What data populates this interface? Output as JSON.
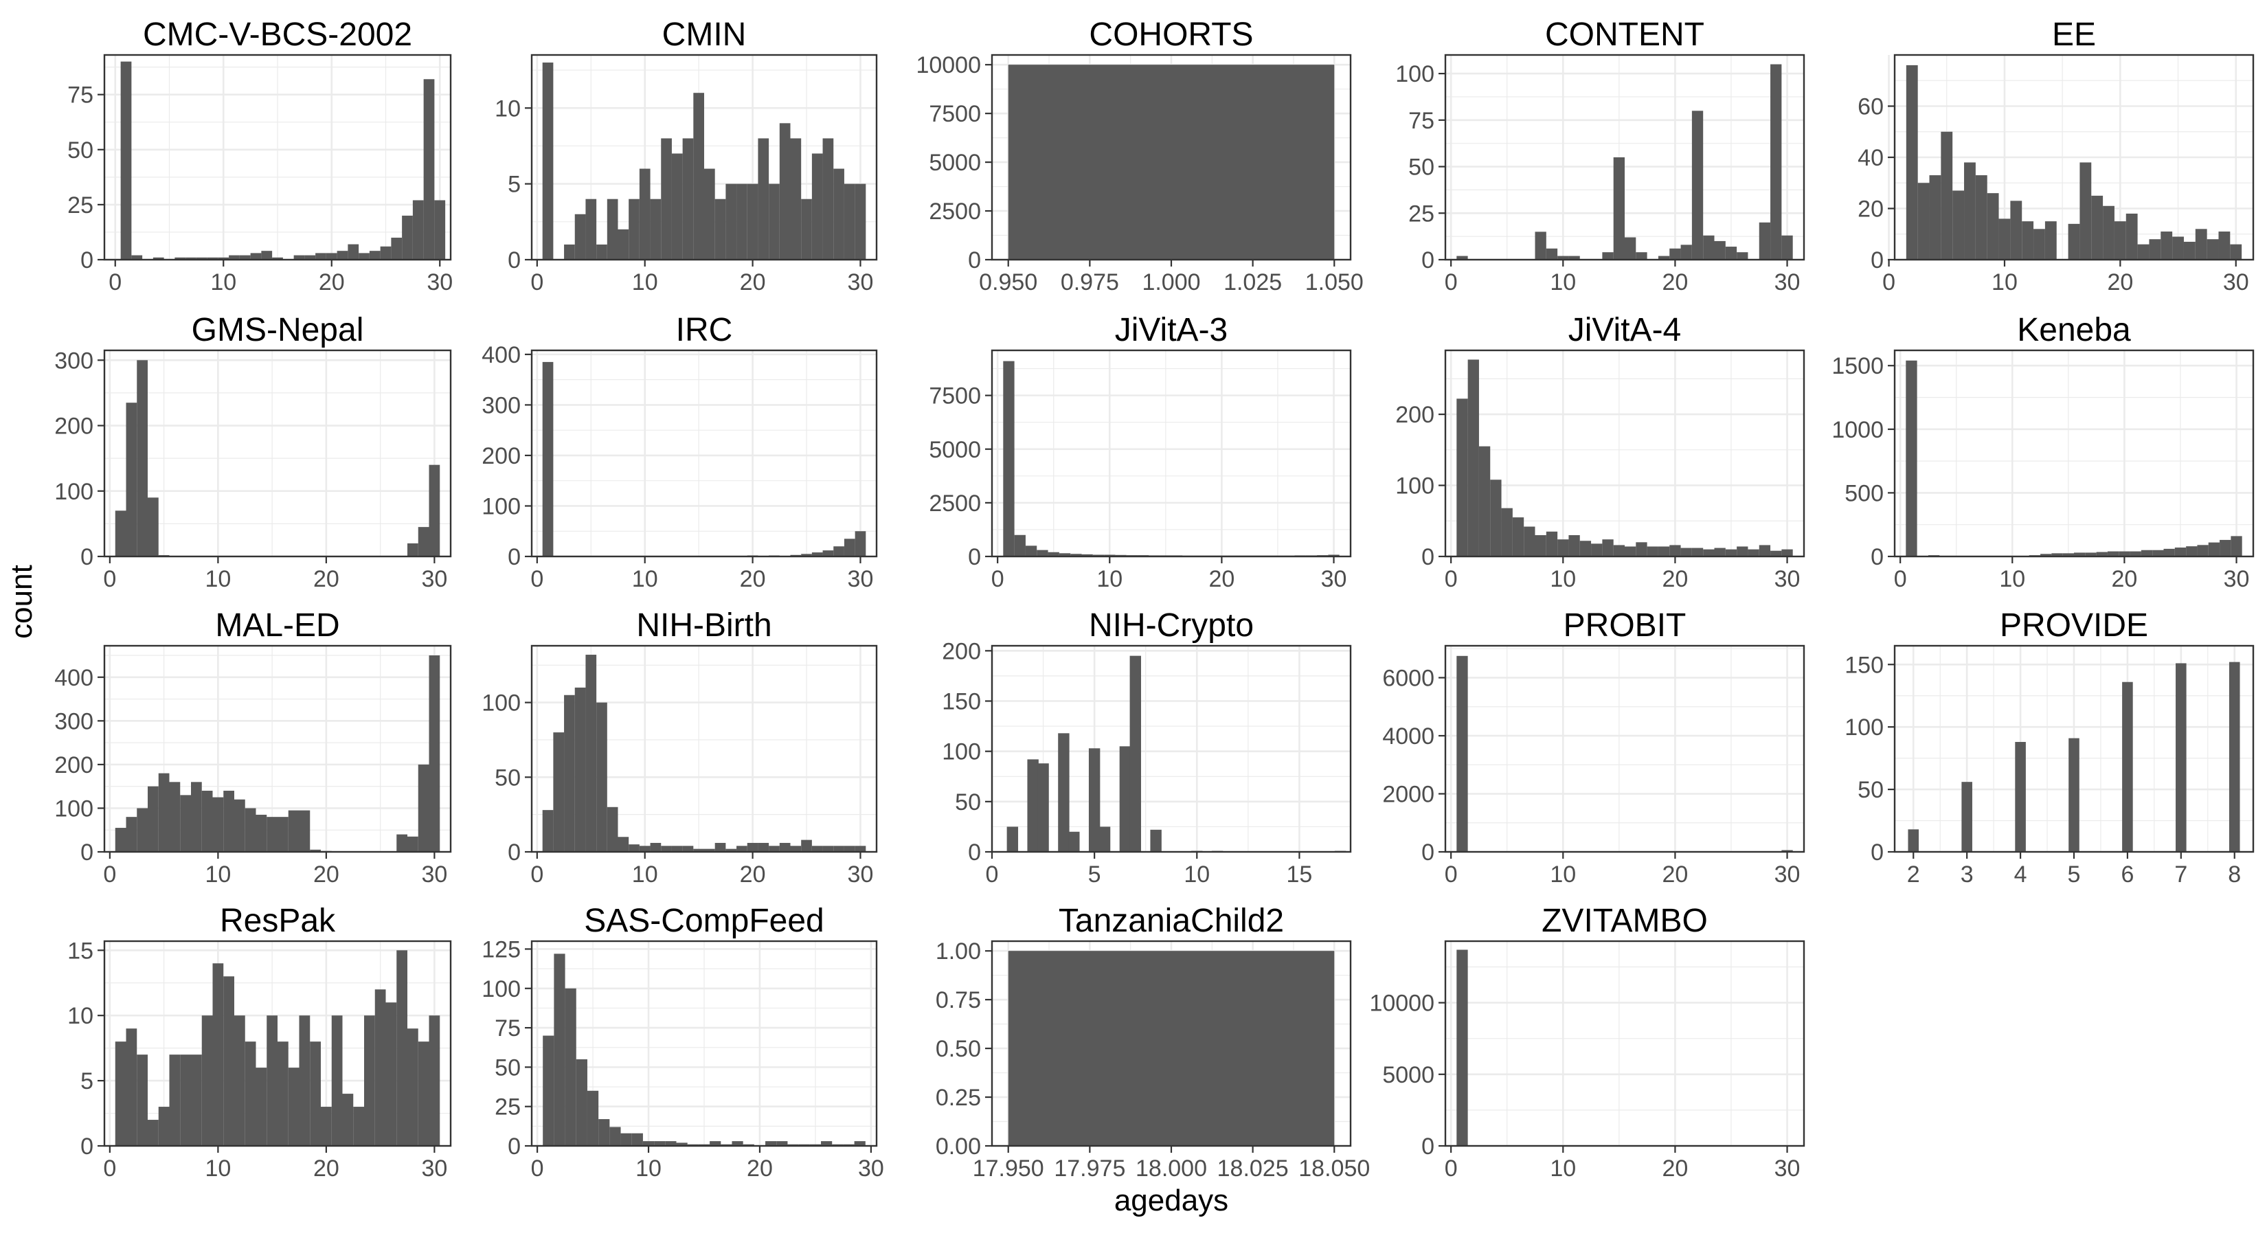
{
  "figure": {
    "ylabel": "count",
    "xlabel": "agedays",
    "colors": {
      "bar": "#595959",
      "grid": "#ebebeb",
      "frame": "#333333",
      "tick_text": "#4d4d4d",
      "title_text": "#000000"
    }
  },
  "chart_data": [
    {
      "type": "bar",
      "title": "CMC-V-BCS-2002",
      "xlim": [
        -1,
        31
      ],
      "xticks": [
        0,
        10,
        20,
        30
      ],
      "ylim": [
        0,
        93
      ],
      "yticks": [
        0,
        25,
        50,
        75
      ],
      "x": [
        1,
        2,
        3,
        4,
        5,
        6,
        7,
        8,
        9,
        10,
        11,
        12,
        13,
        14,
        15,
        16,
        17,
        18,
        19,
        20,
        21,
        22,
        23,
        24,
        25,
        26,
        27,
        28,
        29,
        30
      ],
      "values": [
        90,
        2,
        0,
        1,
        0,
        1,
        1,
        1,
        1,
        1,
        2,
        2,
        3,
        4,
        1,
        0,
        2,
        2,
        3,
        3,
        4,
        7,
        3,
        4,
        6,
        10,
        20,
        27,
        82,
        27
      ],
      "bar_width": 1.0
    },
    {
      "type": "bar",
      "title": "CMIN",
      "xlim": [
        -0.5,
        31.5
      ],
      "xticks": [
        0,
        10,
        20,
        30
      ],
      "ylim": [
        0,
        13.5
      ],
      "yticks": [
        0,
        5,
        10
      ],
      "x": [
        1,
        3,
        4,
        5,
        6,
        7,
        8,
        9,
        10,
        11,
        12,
        13,
        14,
        15,
        16,
        17,
        18,
        19,
        20,
        21,
        22,
        23,
        24,
        25,
        26,
        27,
        28,
        29,
        30
      ],
      "values": [
        13,
        1,
        3,
        4,
        1,
        4,
        2,
        4,
        6,
        4,
        8,
        7,
        8,
        11,
        6,
        4,
        5,
        5,
        5,
        8,
        5,
        9,
        8,
        4,
        7,
        8,
        6,
        5,
        5
      ],
      "bar_width": 1.0
    },
    {
      "type": "bar",
      "title": "COHORTS",
      "xlim": [
        0.945,
        1.055
      ],
      "xticks": [
        0.95,
        0.975,
        1.0,
        1.025,
        1.05
      ],
      "xtick_labels": [
        "0.950",
        "0.975",
        "1.000",
        "1.025",
        "1.050"
      ],
      "ylim": [
        0,
        10500
      ],
      "yticks": [
        0,
        2500,
        5000,
        7500,
        10000
      ],
      "x": [
        1.0
      ],
      "values": [
        10000
      ],
      "bar_width": 0.1
    },
    {
      "type": "bar",
      "title": "CONTENT",
      "xlim": [
        -0.5,
        31.5
      ],
      "xticks": [
        0,
        10,
        20,
        30
      ],
      "ylim": [
        0,
        110
      ],
      "yticks": [
        0,
        25,
        50,
        75,
        100
      ],
      "x": [
        1,
        8,
        9,
        10,
        11,
        14,
        15,
        16,
        17,
        19,
        20,
        21,
        22,
        23,
        24,
        25,
        26,
        28,
        29,
        30
      ],
      "values": [
        2,
        15,
        6,
        2,
        2,
        4,
        55,
        12,
        4,
        2,
        6,
        8,
        80,
        13,
        10,
        7,
        4,
        20,
        105,
        13
      ],
      "bar_width": 1.0
    },
    {
      "type": "bar",
      "title": "EE",
      "xlim": [
        0.5,
        31.5
      ],
      "xticks": [
        0,
        10,
        20,
        30
      ],
      "ylim": [
        0,
        80
      ],
      "yticks": [
        0,
        20,
        40,
        60
      ],
      "x": [
        2,
        3,
        4,
        5,
        6,
        7,
        8,
        9,
        10,
        11,
        12,
        13,
        14,
        16,
        17,
        18,
        19,
        20,
        21,
        22,
        23,
        24,
        25,
        26,
        27,
        28,
        29,
        30
      ],
      "values": [
        76,
        30,
        33,
        50,
        27,
        38,
        33,
        26,
        16,
        23,
        15,
        12,
        15,
        14,
        38,
        25,
        21,
        15,
        18,
        6,
        8,
        11,
        9,
        7,
        12,
        8,
        11,
        6
      ],
      "bar_width": 1.0
    },
    {
      "type": "bar",
      "title": "GMS-Nepal",
      "xlim": [
        -0.5,
        31.5
      ],
      "xticks": [
        0,
        10,
        20,
        30
      ],
      "ylim": [
        0,
        315
      ],
      "yticks": [
        0,
        100,
        200,
        300
      ],
      "x": [
        1,
        2,
        3,
        4,
        5,
        28,
        29,
        30
      ],
      "values": [
        70,
        235,
        300,
        90,
        2,
        20,
        45,
        140
      ],
      "bar_width": 1.0
    },
    {
      "type": "bar",
      "title": "IRC",
      "xlim": [
        -0.5,
        31.5
      ],
      "xticks": [
        0,
        10,
        20,
        30
      ],
      "ylim": [
        0,
        408
      ],
      "yticks": [
        0,
        100,
        200,
        300,
        400
      ],
      "x": [
        1,
        18,
        20,
        22,
        24,
        25,
        26,
        27,
        28,
        29,
        30
      ],
      "values": [
        385,
        1,
        2,
        2,
        3,
        5,
        8,
        12,
        20,
        35,
        50
      ],
      "bar_width": 1.0
    },
    {
      "type": "bar",
      "title": "JiVitA-3",
      "xlim": [
        -0.5,
        31.5
      ],
      "xticks": [
        0,
        10,
        20,
        30
      ],
      "ylim": [
        0,
        9600
      ],
      "yticks": [
        0,
        2500,
        5000,
        7500
      ],
      "x": [
        1,
        2,
        3,
        4,
        5,
        6,
        7,
        8,
        9,
        10,
        11,
        12,
        13,
        14,
        15,
        16,
        17,
        18,
        19,
        20,
        21,
        22,
        23,
        24,
        25,
        26,
        27,
        28,
        29,
        30
      ],
      "values": [
        9100,
        1000,
        500,
        300,
        200,
        150,
        120,
        100,
        80,
        80,
        70,
        60,
        60,
        50,
        50,
        50,
        40,
        40,
        40,
        40,
        40,
        40,
        40,
        40,
        40,
        40,
        50,
        50,
        60,
        80
      ],
      "bar_width": 1.0
    },
    {
      "type": "bar",
      "title": "JiVitA-4",
      "xlim": [
        -0.5,
        31.5
      ],
      "xticks": [
        0,
        10,
        20,
        30
      ],
      "ylim": [
        0,
        290
      ],
      "yticks": [
        0,
        100,
        200
      ],
      "x": [
        1,
        2,
        3,
        4,
        5,
        6,
        7,
        8,
        9,
        10,
        11,
        12,
        13,
        14,
        15,
        16,
        17,
        18,
        19,
        20,
        21,
        22,
        23,
        24,
        25,
        26,
        27,
        28,
        29,
        30
      ],
      "values": [
        222,
        277,
        155,
        108,
        68,
        55,
        42,
        30,
        35,
        24,
        30,
        22,
        18,
        24,
        16,
        14,
        20,
        14,
        14,
        16,
        12,
        12,
        10,
        12,
        10,
        14,
        10,
        16,
        8,
        10
      ],
      "bar_width": 1.0
    },
    {
      "type": "bar",
      "title": "Keneba",
      "xlim": [
        -0.5,
        31.5
      ],
      "xticks": [
        0,
        10,
        20,
        30
      ],
      "ylim": [
        0,
        1620
      ],
      "yticks": [
        0,
        500,
        1000,
        1500
      ],
      "x": [
        1,
        3,
        5,
        10,
        12,
        13,
        14,
        15,
        16,
        17,
        18,
        19,
        20,
        21,
        22,
        23,
        24,
        25,
        26,
        27,
        28,
        29,
        30
      ],
      "values": [
        1540,
        10,
        5,
        5,
        10,
        20,
        25,
        25,
        30,
        30,
        35,
        40,
        40,
        40,
        50,
        50,
        60,
        70,
        80,
        90,
        110,
        130,
        160
      ],
      "bar_width": 1.0
    },
    {
      "type": "bar",
      "title": "MAL-ED",
      "xlim": [
        -0.5,
        31.5
      ],
      "xticks": [
        0,
        10,
        20,
        30
      ],
      "ylim": [
        0,
        472
      ],
      "yticks": [
        0,
        100,
        200,
        300,
        400
      ],
      "x": [
        1,
        2,
        3,
        4,
        5,
        6,
        7,
        8,
        9,
        10,
        11,
        12,
        13,
        14,
        15,
        16,
        17,
        18,
        19,
        20,
        27,
        28,
        29,
        30
      ],
      "values": [
        55,
        80,
        100,
        150,
        180,
        160,
        130,
        160,
        140,
        125,
        140,
        120,
        100,
        85,
        80,
        80,
        95,
        95,
        5,
        2,
        40,
        35,
        200,
        450
      ],
      "bar_width": 1.0
    },
    {
      "type": "bar",
      "title": "NIH-Birth",
      "xlim": [
        -0.5,
        31.5
      ],
      "xticks": [
        0,
        10,
        20,
        30
      ],
      "ylim": [
        0,
        138
      ],
      "yticks": [
        0,
        50,
        100
      ],
      "x": [
        1,
        2,
        3,
        4,
        5,
        6,
        7,
        8,
        9,
        10,
        11,
        12,
        13,
        14,
        15,
        16,
        17,
        18,
        19,
        20,
        21,
        22,
        23,
        24,
        25,
        26,
        27,
        28,
        29,
        30
      ],
      "values": [
        28,
        80,
        105,
        110,
        132,
        100,
        30,
        10,
        5,
        4,
        6,
        4,
        4,
        4,
        2,
        2,
        6,
        2,
        4,
        6,
        6,
        4,
        6,
        4,
        8,
        4,
        4,
        4,
        4,
        4
      ],
      "bar_width": 1.0
    },
    {
      "type": "bar",
      "title": "NIH-Crypto",
      "xlim": [
        0,
        17.5
      ],
      "xticks": [
        0,
        5,
        10,
        15
      ],
      "ylim": [
        0,
        205
      ],
      "yticks": [
        0,
        50,
        100,
        150,
        200
      ],
      "x": [
        1,
        2,
        2.5,
        3.5,
        4,
        5,
        5.5,
        6.5,
        7,
        8,
        10,
        11,
        17
      ],
      "values": [
        25,
        92,
        88,
        118,
        20,
        103,
        25,
        105,
        195,
        22,
        1,
        1,
        1
      ],
      "bar_width": 0.55
    },
    {
      "type": "bar",
      "title": "PROBIT",
      "xlim": [
        -0.5,
        31.5
      ],
      "xticks": [
        0,
        10,
        20,
        30
      ],
      "ylim": [
        0,
        7100
      ],
      "yticks": [
        0,
        2000,
        4000,
        6000
      ],
      "x": [
        1,
        29,
        30
      ],
      "values": [
        6750,
        10,
        60
      ],
      "bar_width": 1.0
    },
    {
      "type": "bar",
      "title": "PROVIDE",
      "xlim": [
        1.65,
        8.35
      ],
      "xticks": [
        2,
        3,
        4,
        5,
        6,
        7,
        8
      ],
      "ylim": [
        0,
        165
      ],
      "yticks": [
        0,
        50,
        100,
        150
      ],
      "x": [
        2,
        3,
        4,
        5,
        6,
        7,
        8
      ],
      "values": [
        18,
        56,
        88,
        91,
        136,
        151,
        152
      ],
      "bar_width": 0.2
    },
    {
      "type": "bar",
      "title": "ResPak",
      "xlim": [
        -0.5,
        31.5
      ],
      "xticks": [
        0,
        10,
        20,
        30
      ],
      "ylim": [
        0,
        15.7
      ],
      "yticks": [
        0,
        5,
        10,
        15
      ],
      "x": [
        1,
        2,
        3,
        4,
        5,
        6,
        7,
        8,
        9,
        10,
        11,
        12,
        13,
        14,
        15,
        16,
        17,
        18,
        19,
        20,
        21,
        22,
        23,
        24,
        25,
        26,
        27,
        28,
        29,
        30
      ],
      "values": [
        8,
        9,
        7,
        2,
        3,
        7,
        7,
        7,
        10,
        14,
        13,
        10,
        8,
        6,
        10,
        8,
        6,
        10,
        8,
        3,
        10,
        4,
        3,
        10,
        12,
        11,
        15,
        9,
        8,
        10
      ],
      "bar_width": 1.0
    },
    {
      "type": "bar",
      "title": "SAS-CompFeed",
      "xlim": [
        -0.5,
        30.5
      ],
      "xticks": [
        0,
        10,
        20,
        30
      ],
      "ylim": [
        0,
        130
      ],
      "yticks": [
        0,
        25,
        50,
        75,
        100,
        125
      ],
      "x": [
        1,
        2,
        3,
        4,
        5,
        6,
        7,
        8,
        9,
        10,
        11,
        12,
        13,
        14,
        15,
        16,
        17,
        18,
        19,
        20,
        21,
        22,
        23,
        24,
        25,
        26,
        27,
        28,
        29
      ],
      "values": [
        70,
        122,
        100,
        55,
        35,
        17,
        12,
        8,
        8,
        3,
        3,
        3,
        2,
        1,
        1,
        3,
        1,
        3,
        1,
        0,
        3,
        3,
        1,
        1,
        1,
        3,
        1,
        1,
        3
      ],
      "bar_width": 1.0
    },
    {
      "type": "bar",
      "title": "TanzaniaChild2",
      "xlim": [
        17.945,
        18.055
      ],
      "xticks": [
        17.95,
        17.975,
        18.0,
        18.025,
        18.05
      ],
      "xtick_labels": [
        "17.950",
        "17.975",
        "18.000",
        "18.025",
        "18.050"
      ],
      "ylim": [
        0,
        1.05
      ],
      "yticks": [
        0,
        0.25,
        0.5,
        0.75,
        1.0
      ],
      "ytick_labels": [
        "0.00",
        "0.25",
        "0.50",
        "0.75",
        "1.00"
      ],
      "x": [
        18.0
      ],
      "values": [
        1
      ],
      "bar_width": 0.1
    },
    {
      "type": "bar",
      "title": "ZVITAMBO",
      "xlim": [
        -0.5,
        31.5
      ],
      "xticks": [
        0,
        10,
        20,
        30
      ],
      "ylim": [
        0,
        14300
      ],
      "yticks": [
        0,
        5000,
        10000
      ],
      "x": [
        1
      ],
      "values": [
        13700
      ],
      "bar_width": 1.0
    }
  ]
}
